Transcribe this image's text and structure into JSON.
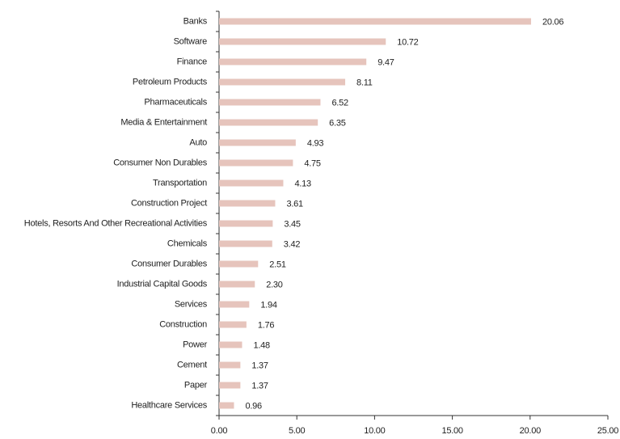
{
  "chart_data": {
    "type": "bar",
    "orientation": "horizontal",
    "categories": [
      "Banks",
      "Software",
      "Finance",
      "Petroleum Products",
      "Pharmaceuticals",
      "Media & Entertainment",
      "Auto",
      "Consumer Non Durables",
      "Transportation",
      "Construction Project",
      "Hotels, Resorts And Other Recreational Activities",
      "Chemicals",
      "Consumer Durables",
      "Industrial Capital Goods",
      "Services",
      "Construction",
      "Power",
      "Cement",
      "Paper",
      "Healthcare Services"
    ],
    "values": [
      20.06,
      10.72,
      9.47,
      8.11,
      6.52,
      6.35,
      4.93,
      4.75,
      4.13,
      3.61,
      3.45,
      3.42,
      2.51,
      2.3,
      1.94,
      1.76,
      1.48,
      1.37,
      1.37,
      0.96
    ],
    "value_labels": [
      "20.06",
      "10.72",
      "9.47",
      "8.11",
      "6.52",
      "6.35",
      "4.93",
      "4.75",
      "4.13",
      "3.61",
      "3.45",
      "3.42",
      "2.51",
      "2.30",
      "1.94",
      "1.76",
      "1.48",
      "1.37",
      "1.37",
      "0.96"
    ],
    "color": "#e6c4bc",
    "xlim": [
      0,
      25
    ],
    "xticks": [
      {
        "value": 0,
        "label": "0.00"
      },
      {
        "value": 5,
        "label": "5.00"
      },
      {
        "value": 10,
        "label": "10.00"
      },
      {
        "value": 15,
        "label": "15.00"
      },
      {
        "value": 20,
        "label": "20.00"
      },
      {
        "value": 25,
        "label": "25.00"
      }
    ]
  }
}
